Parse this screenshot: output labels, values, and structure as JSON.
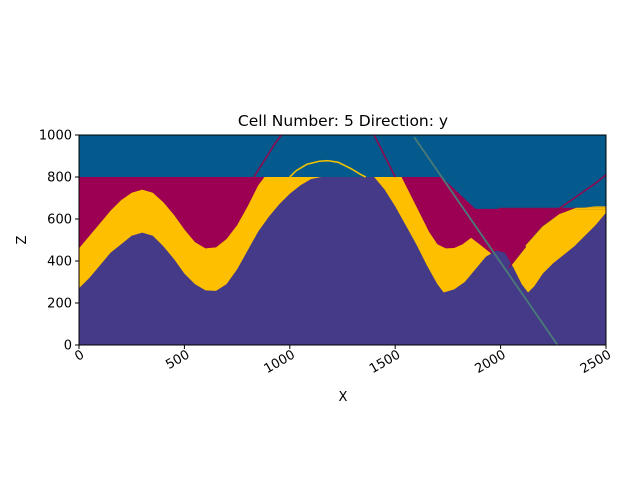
{
  "chart_data": {
    "type": "area",
    "title": "Cell Number: 5 Direction: y",
    "xlabel": "X",
    "ylabel": "Z",
    "xlim": [
      0,
      2500
    ],
    "ylim": [
      0,
      1000
    ],
    "xticks": [
      "0",
      "500",
      "1000",
      "1500",
      "2000",
      "2500"
    ],
    "yticks": [
      "0",
      "200",
      "400",
      "600",
      "800",
      "1000"
    ],
    "xtick_rotation_deg": 30,
    "grid": false,
    "legend": "none",
    "colors": {
      "top_layer": "#045a8d",
      "red_layer": "#9b0052",
      "yellow_layer": "#fdbf00",
      "basement": "#443a87",
      "fault_line": "#4a7b78",
      "red_contour": "#8e0a4f",
      "yellow_contour": "#f2c200"
    },
    "layers": [
      {
        "id": "top_layer",
        "upper": [
          [
            0,
            1000
          ],
          [
            2500,
            1000
          ]
        ]
      },
      {
        "id": "red_layer",
        "upper_left": [
          [
            0,
            800
          ],
          [
            1720,
            800
          ],
          [
            1880,
            648
          ],
          [
            2500,
            648
          ]
        ]
      },
      {
        "id": "yellow_layer",
        "upper": [
          [
            0,
            460
          ],
          [
            50,
            520
          ],
          [
            100,
            580
          ],
          [
            150,
            640
          ],
          [
            200,
            690
          ],
          [
            250,
            725
          ],
          [
            300,
            740
          ],
          [
            350,
            725
          ],
          [
            400,
            680
          ],
          [
            450,
            620
          ],
          [
            500,
            550
          ],
          [
            550,
            490
          ],
          [
            600,
            460
          ],
          [
            650,
            465
          ],
          [
            700,
            505
          ],
          [
            750,
            570
          ],
          [
            800,
            660
          ],
          [
            850,
            760
          ],
          [
            880,
            800
          ],
          [
            1530,
            800
          ],
          [
            1580,
            700
          ],
          [
            1620,
            620
          ],
          [
            1660,
            540
          ],
          [
            1700,
            480
          ],
          [
            1740,
            460
          ],
          [
            1780,
            462
          ],
          [
            1820,
            480
          ],
          [
            1860,
            510
          ],
          [
            1900,
            480
          ],
          [
            1950,
            440
          ],
          [
            2000,
            400
          ],
          [
            2040,
            370
          ],
          [
            2080,
            420
          ],
          [
            2120,
            470
          ],
          [
            2160,
            520
          ],
          [
            2200,
            560
          ],
          [
            2250,
            600
          ],
          [
            2300,
            630
          ],
          [
            2350,
            650
          ],
          [
            2400,
            655
          ],
          [
            2450,
            660
          ],
          [
            2500,
            660
          ]
        ]
      },
      {
        "id": "basement",
        "upper": [
          [
            0,
            270
          ],
          [
            50,
            320
          ],
          [
            100,
            380
          ],
          [
            150,
            440
          ],
          [
            200,
            480
          ],
          [
            250,
            520
          ],
          [
            300,
            535
          ],
          [
            350,
            520
          ],
          [
            400,
            470
          ],
          [
            450,
            410
          ],
          [
            500,
            340
          ],
          [
            550,
            290
          ],
          [
            600,
            260
          ],
          [
            650,
            258
          ],
          [
            700,
            290
          ],
          [
            750,
            360
          ],
          [
            800,
            450
          ],
          [
            850,
            540
          ],
          [
            900,
            610
          ],
          [
            950,
            670
          ],
          [
            1000,
            720
          ],
          [
            1050,
            760
          ],
          [
            1100,
            790
          ],
          [
            1150,
            800
          ],
          [
            1400,
            800
          ],
          [
            1450,
            740
          ],
          [
            1500,
            660
          ],
          [
            1550,
            570
          ],
          [
            1600,
            480
          ],
          [
            1650,
            380
          ],
          [
            1700,
            290
          ],
          [
            1730,
            250
          ],
          [
            1780,
            265
          ],
          [
            1830,
            300
          ],
          [
            1880,
            360
          ],
          [
            1930,
            420
          ],
          [
            1980,
            450
          ],
          [
            2020,
            440
          ],
          [
            2060,
            370
          ],
          [
            2100,
            290
          ],
          [
            2130,
            250
          ],
          [
            2160,
            280
          ],
          [
            2200,
            340
          ],
          [
            2250,
            390
          ],
          [
            2300,
            430
          ],
          [
            2350,
            470
          ],
          [
            2400,
            520
          ],
          [
            2450,
            570
          ],
          [
            2500,
            630
          ]
        ]
      }
    ],
    "lines": [
      {
        "id": "fault_line",
        "points": [
          [
            1590,
            990
          ],
          [
            2270,
            0
          ]
        ]
      },
      {
        "id": "red_contour_left",
        "points": [
          [
            830,
            800
          ],
          [
            880,
            880
          ],
          [
            930,
            960
          ],
          [
            960,
            1000
          ]
        ]
      },
      {
        "id": "red_contour_right",
        "points": [
          [
            1400,
            1000
          ],
          [
            1450,
            900
          ],
          [
            1500,
            800
          ]
        ]
      },
      {
        "id": "red_contour_far",
        "points": [
          [
            2040,
            370
          ],
          [
            2150,
            510
          ],
          [
            2250,
            630
          ],
          [
            2350,
            700
          ],
          [
            2450,
            770
          ],
          [
            2500,
            810
          ]
        ]
      },
      {
        "id": "red_dike",
        "points": [
          [
            1990,
            650
          ],
          [
            2500,
            650
          ]
        ]
      },
      {
        "id": "yellow_contour_top",
        "points": [
          [
            1000,
            800
          ],
          [
            1030,
            830
          ],
          [
            1080,
            860
          ],
          [
            1140,
            875
          ],
          [
            1180,
            878
          ],
          [
            1230,
            870
          ],
          [
            1290,
            840
          ],
          [
            1340,
            810
          ],
          [
            1360,
            800
          ]
        ]
      },
      {
        "id": "yellow_contour_right",
        "points": [
          [
            2120,
            470
          ],
          [
            2200,
            560
          ],
          [
            2280,
            620
          ],
          [
            2360,
            650
          ],
          [
            2500,
            650
          ]
        ]
      }
    ]
  }
}
